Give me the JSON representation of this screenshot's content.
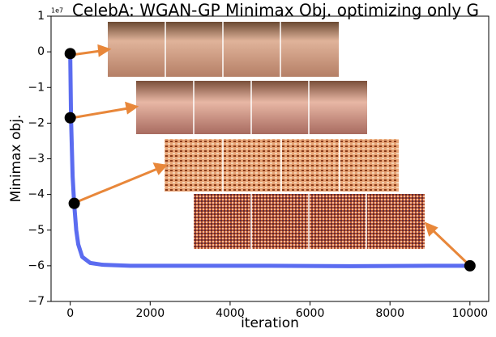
{
  "chart_data": {
    "type": "line",
    "title": "CelebA: WGAN-GP Minimax Obj. optimizing only G",
    "x_label": "iteration",
    "y_label": "Minimax obj.",
    "y_offset_label": "1e7",
    "x": [
      0,
      20,
      60,
      100,
      150,
      200,
      300,
      500,
      800,
      1500,
      3000,
      5000,
      7000,
      9000,
      10000
    ],
    "series": [
      {
        "name": "Minimax obj.",
        "color": "#5b6cf0",
        "values": [
          -0.1,
          -1.88,
          -3.5,
          -4.29,
          -5.0,
          -5.4,
          -5.75,
          -5.92,
          -5.97,
          -6.0,
          -6.0,
          -6.0,
          -6.01,
          -6.0,
          -6.0
        ]
      }
    ],
    "highlights": {
      "x": [
        0,
        0,
        100,
        10000
      ],
      "values": [
        -0.05,
        -1.85,
        -4.25,
        -6.0
      ],
      "color": "#000000"
    },
    "xlim": [
      -480,
      10470
    ],
    "ylim": [
      -7,
      1
    ],
    "xticks": [
      0,
      2000,
      4000,
      6000,
      8000,
      10000
    ],
    "yticks": [
      {
        "value": -7,
        "label": "−7"
      },
      {
        "value": -6,
        "label": "−6"
      },
      {
        "value": -5,
        "label": "−5"
      },
      {
        "value": -4,
        "label": "−4"
      },
      {
        "value": -3,
        "label": "−3"
      },
      {
        "value": -2,
        "label": "−2"
      },
      {
        "value": -1,
        "label": "−1"
      },
      0,
      1
    ]
  }
}
